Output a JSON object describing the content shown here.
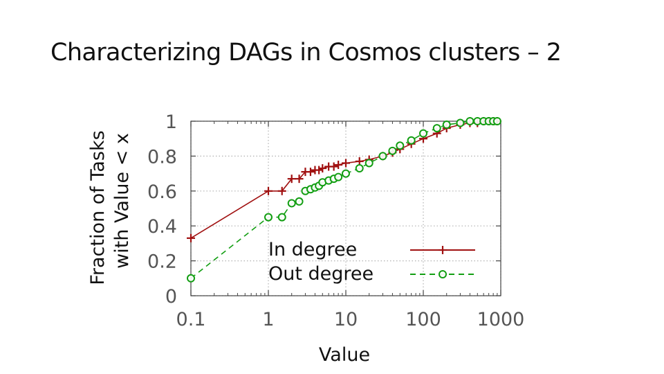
{
  "slide": {
    "title": "Characterizing DAGs in Cosmos clusters – 2"
  },
  "colors": {
    "in_degree": "#a01010",
    "out_degree": "#129e12",
    "grid": "#b0b0b0",
    "axis": "#444444"
  },
  "chart_data": {
    "type": "line",
    "xlabel": "Value",
    "ylabel_lines": [
      "Fraction of Tasks",
      "with Value < x"
    ],
    "x_scale": "log",
    "xlim": [
      0.1,
      1000
    ],
    "ylim": [
      0,
      1
    ],
    "x_ticks": [
      0.1,
      1,
      10,
      100,
      1000
    ],
    "x_tick_labels": [
      "0.1",
      "1",
      "10",
      "100",
      "1000"
    ],
    "y_ticks": [
      0,
      0.2,
      0.4,
      0.6,
      0.8,
      1
    ],
    "y_tick_labels": [
      "0",
      "0.2",
      "0.4",
      "0.6",
      "0.8",
      "1"
    ],
    "grid": true,
    "legend_position": "lower-right",
    "series": [
      {
        "name": "In degree",
        "marker": "plus",
        "line": "solid",
        "color": "#a01010",
        "x": [
          0.1,
          1,
          1.5,
          2,
          2.5,
          3,
          3.5,
          4,
          4.5,
          5,
          6,
          7,
          8,
          10,
          15,
          20,
          30,
          40,
          50,
          70,
          100,
          150,
          200,
          300,
          400,
          500,
          600,
          700,
          800,
          900
        ],
        "y": [
          0.33,
          0.6,
          0.6,
          0.67,
          0.67,
          0.71,
          0.71,
          0.72,
          0.72,
          0.73,
          0.74,
          0.74,
          0.75,
          0.76,
          0.77,
          0.78,
          0.8,
          0.82,
          0.84,
          0.87,
          0.9,
          0.93,
          0.96,
          0.98,
          0.99,
          0.99,
          1.0,
          1.0,
          1.0,
          1.0
        ]
      },
      {
        "name": "Out degree",
        "marker": "circle",
        "line": "dashed",
        "color": "#129e12",
        "x": [
          0.1,
          1,
          1.5,
          2,
          2.5,
          3,
          3.5,
          4,
          4.5,
          5,
          6,
          7,
          8,
          10,
          15,
          20,
          30,
          40,
          50,
          70,
          100,
          150,
          200,
          300,
          400,
          500,
          600,
          700,
          800,
          900
        ],
        "y": [
          0.1,
          0.45,
          0.45,
          0.53,
          0.54,
          0.6,
          0.61,
          0.62,
          0.63,
          0.65,
          0.66,
          0.67,
          0.68,
          0.7,
          0.73,
          0.76,
          0.8,
          0.83,
          0.86,
          0.89,
          0.93,
          0.96,
          0.98,
          0.99,
          1.0,
          1.0,
          1.0,
          1.0,
          1.0,
          1.0
        ]
      }
    ]
  }
}
